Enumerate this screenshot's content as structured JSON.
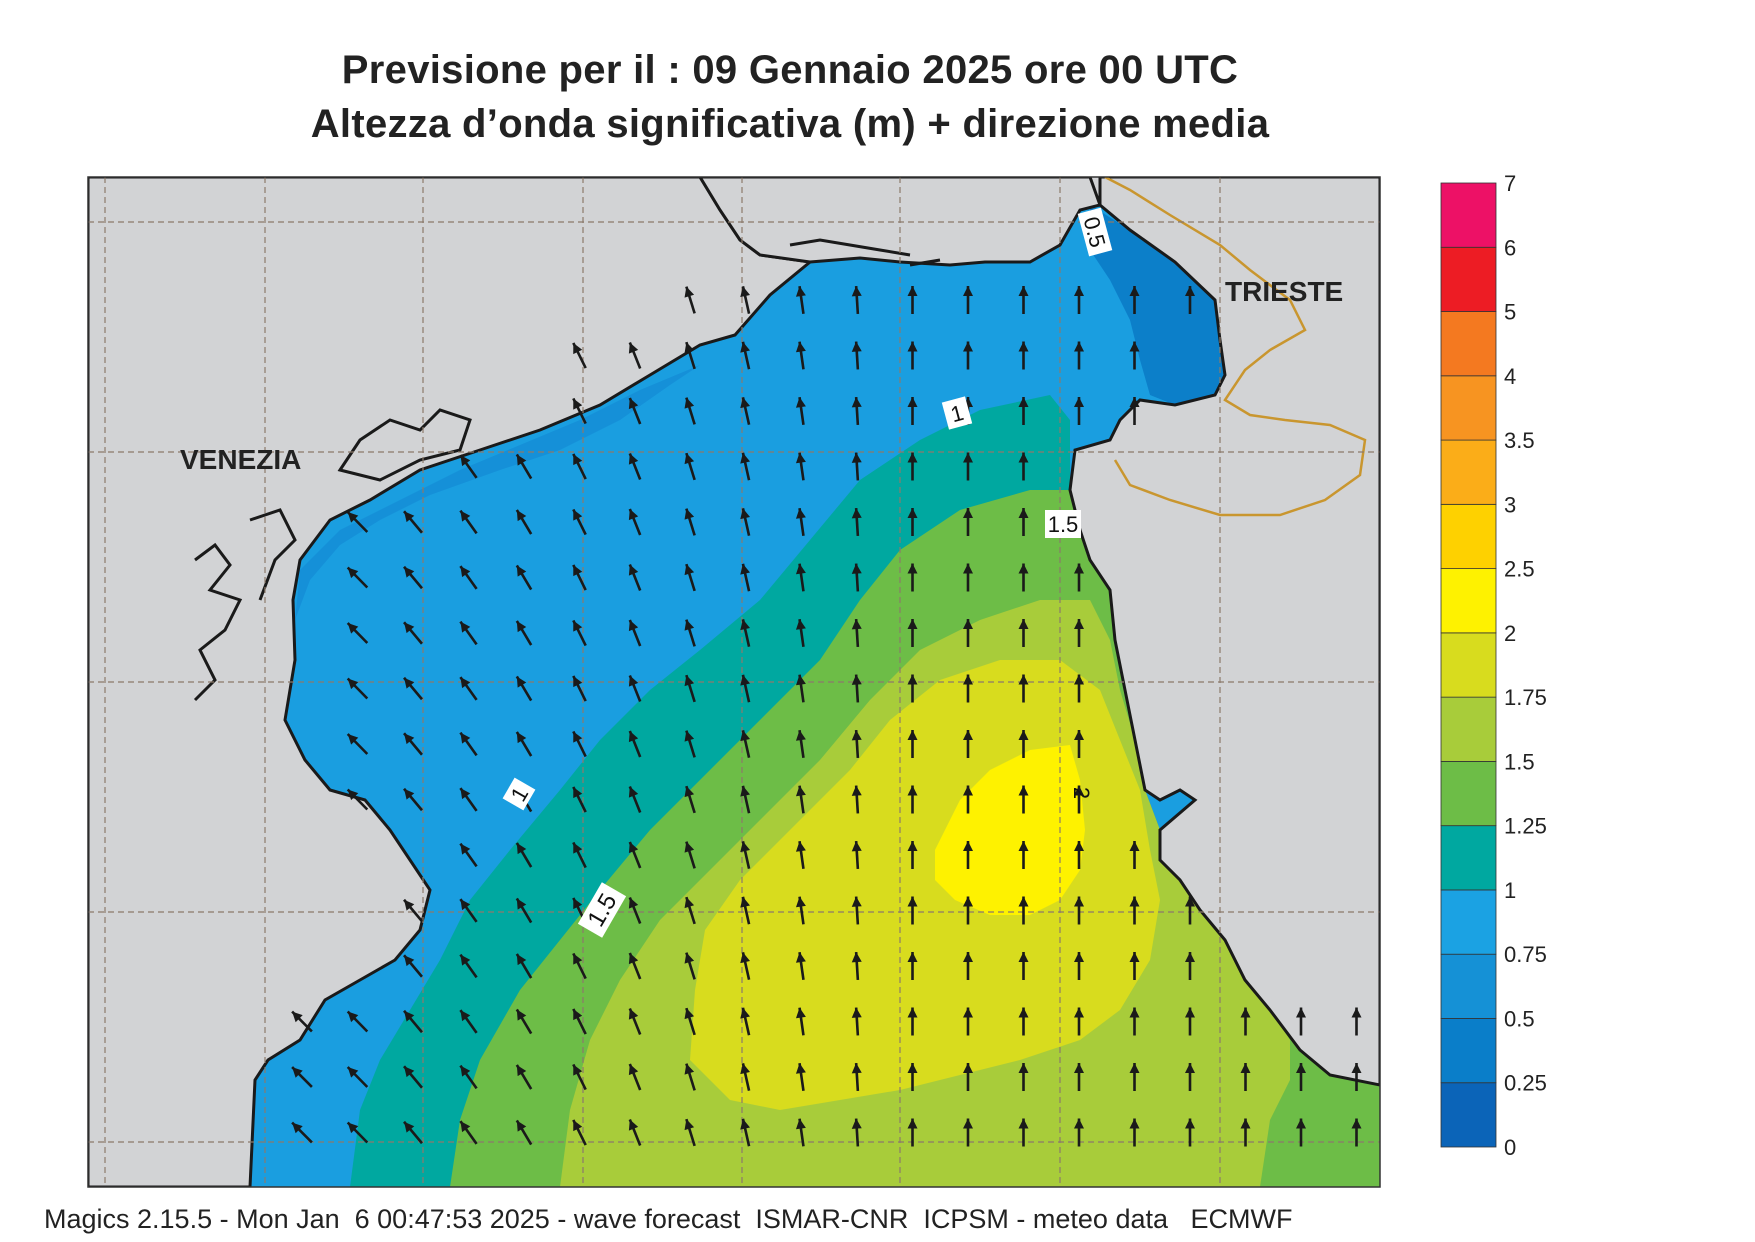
{
  "title": {
    "line1": "Previsione per il  :  09  Gennaio  2025   ore 00 UTC",
    "line2": "Altezza d’onda significativa (m) + direzione media"
  },
  "labels": {
    "venezia": "VENEZIA",
    "trieste": "TRIESTE",
    "contour_05": "0.5",
    "contour_1_top": "1",
    "contour_1_left": "1",
    "contour_15_top": "1.5",
    "contour_15_bottom": "1.5",
    "contour_2": "2"
  },
  "legend": {
    "ticks": [
      "0",
      "0.25",
      "0.5",
      "0.75",
      "1",
      "1.25",
      "1.5",
      "1.75",
      "2",
      "2.5",
      "3",
      "3.5",
      "4",
      "5",
      "6",
      "7"
    ],
    "colors": [
      "#0b64b8",
      "#0a7ec9",
      "#1591d6",
      "#1ba2e3",
      "#00a8a0",
      "#6dbd47",
      "#a8cc3a",
      "#d8dc1e",
      "#fef200",
      "#fed100",
      "#fbad18",
      "#f79421",
      "#f47920",
      "#ed1c24",
      "#ed1166"
    ]
  },
  "footer": "Magics 2.15.5 - Mon Jan  6 00:47:53 2025 - wave forecast  ISMAR-CNR  ICPSM - meteo data   ECMWF",
  "colors": {
    "land": "#d2d3d5",
    "border": "#c9962f",
    "arrow": "#1a1a1a",
    "coast": "#1a1a1a"
  }
}
